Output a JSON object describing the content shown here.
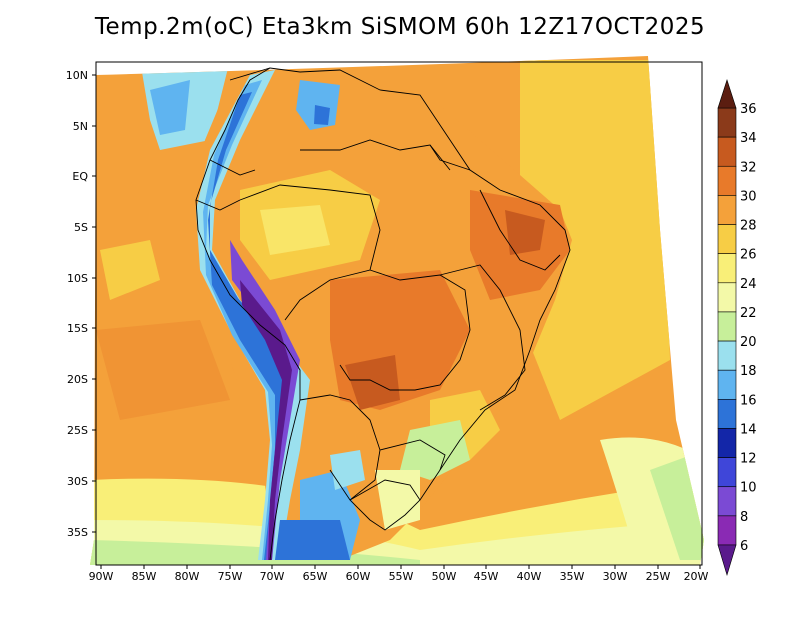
{
  "title": "Temp.2m(oC) Eta3km SiSMOM 60h 12Z17OCT2025",
  "axes": {
    "lat_labels": [
      "10N",
      "5N",
      "EQ",
      "5S",
      "10S",
      "15S",
      "20S",
      "25S",
      "30S",
      "35S"
    ],
    "lon_labels": [
      "90W",
      "85W",
      "80W",
      "75W",
      "70W",
      "65W",
      "60W",
      "55W",
      "50W",
      "45W",
      "40W",
      "35W",
      "30W",
      "25W",
      "20W"
    ]
  },
  "colorbar": {
    "levels": [
      "36",
      "34",
      "32",
      "30",
      "28",
      "26",
      "24",
      "22",
      "20",
      "18",
      "16",
      "14",
      "12",
      "10",
      "8",
      "6"
    ],
    "colors": [
      "#5b1d10",
      "#8b3a1a",
      "#c75a1f",
      "#e87a2a",
      "#f4a13a",
      "#f7cd45",
      "#f9ef78",
      "#f3f9a8",
      "#c7ef9a",
      "#9be0ee",
      "#5fb4f0",
      "#2d73d8",
      "#1326a8",
      "#3f46d9",
      "#7b4ad4",
      "#8a2ab4",
      "#5a1a8c"
    ]
  },
  "chart_data": {
    "type": "heatmap",
    "title": "Temp.2m(oC) Eta3km SiSMOM 60h 12Z17OCT2025",
    "variable": "2 m temperature (oC)",
    "x_range": [
      -90,
      -20
    ],
    "y_range": [
      -38,
      11
    ],
    "xticks": [
      "90W",
      "85W",
      "80W",
      "75W",
      "70W",
      "65W",
      "60W",
      "55W",
      "50W",
      "45W",
      "40W",
      "35W",
      "30W",
      "25W",
      "20W"
    ],
    "yticks": [
      "10N",
      "5N",
      "EQ",
      "5S",
      "10S",
      "15S",
      "20S",
      "25S",
      "30S",
      "35S"
    ],
    "colorbar_levels": [
      6,
      8,
      10,
      12,
      14,
      16,
      18,
      20,
      22,
      24,
      26,
      28,
      30,
      32,
      34,
      36
    ],
    "colorbar_extend": "both"
  }
}
